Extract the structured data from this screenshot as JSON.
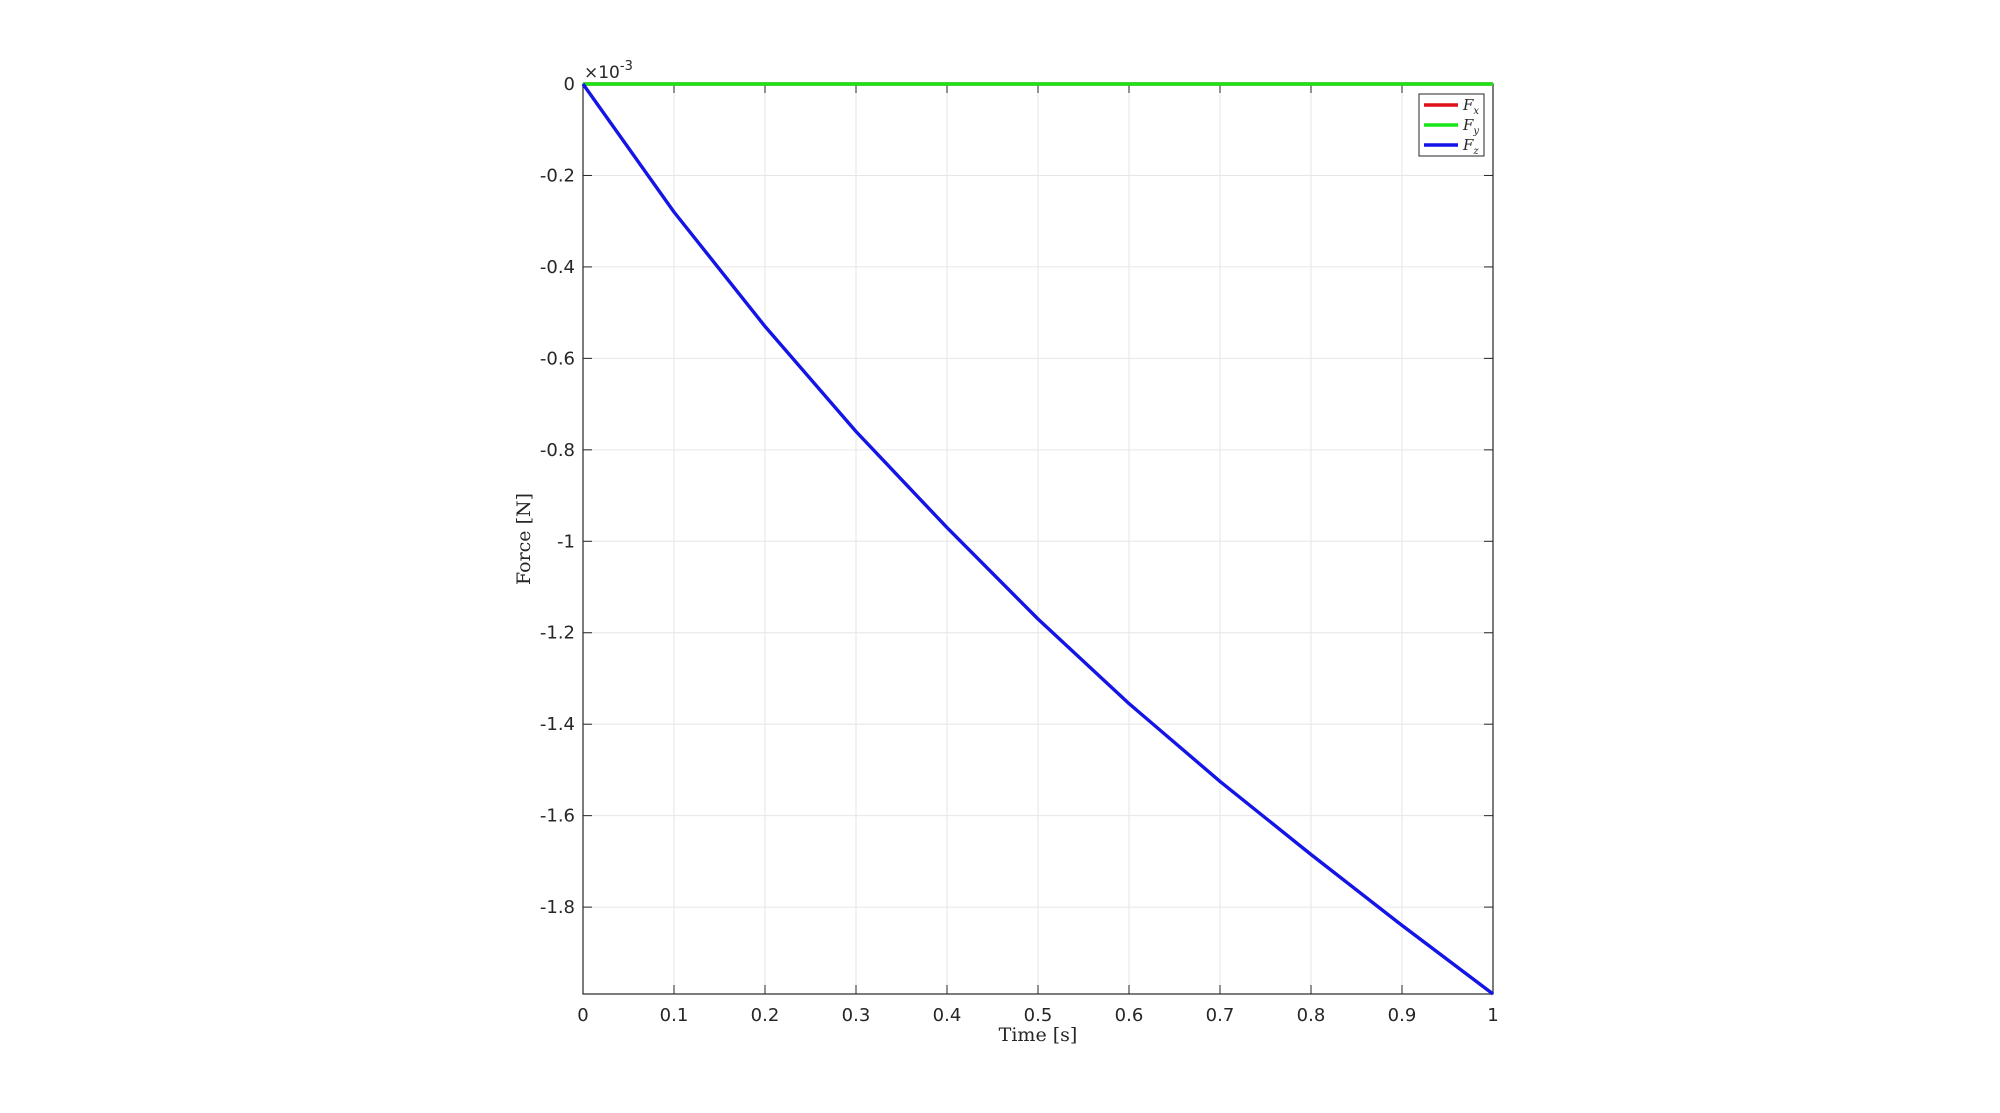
{
  "chart_data": {
    "type": "line",
    "xlabel": "Time [s]",
    "ylabel": "Force [N]",
    "y_exponent_base": "×10",
    "y_exponent_power": "-3",
    "xlim": [
      0,
      1
    ],
    "ylim": [
      -1.99,
      0
    ],
    "grid": true,
    "legend_position": "top-right",
    "x_ticks": [
      0,
      0.1,
      0.2,
      0.3,
      0.4,
      0.5,
      0.6,
      0.7,
      0.8,
      0.9,
      1
    ],
    "x_tick_labels": [
      "0",
      "0.1",
      "0.2",
      "0.3",
      "0.4",
      "0.5",
      "0.6",
      "0.7",
      "0.8",
      "0.9",
      "1"
    ],
    "y_ticks": [
      0,
      -0.2,
      -0.4,
      -0.6,
      -0.8,
      -1,
      -1.2,
      -1.4,
      -1.6,
      -1.8
    ],
    "y_tick_labels": [
      "0",
      "-0.2",
      "-0.4",
      "-0.6",
      "-0.8",
      "-1",
      "-1.2",
      "-1.4",
      "-1.6",
      "-1.8"
    ],
    "x": [
      0,
      0.1,
      0.2,
      0.3,
      0.4,
      0.5,
      0.6,
      0.7,
      0.8,
      0.9,
      1.0
    ],
    "series": [
      {
        "name": "F",
        "subscript": "x",
        "color": "#e0101a",
        "values": [
          0,
          0,
          0,
          0,
          0,
          0,
          0,
          0,
          0,
          0,
          0
        ]
      },
      {
        "name": "F",
        "subscript": "y",
        "color": "#19e619",
        "values": [
          0,
          0,
          0,
          0,
          0,
          0,
          0,
          0,
          0,
          0,
          0
        ]
      },
      {
        "name": "F",
        "subscript": "z",
        "color": "#1414e6",
        "values": [
          0,
          -0.28,
          -0.53,
          -0.76,
          -0.97,
          -1.17,
          -1.355,
          -1.525,
          -1.685,
          -1.84,
          -1.99
        ]
      }
    ]
  }
}
